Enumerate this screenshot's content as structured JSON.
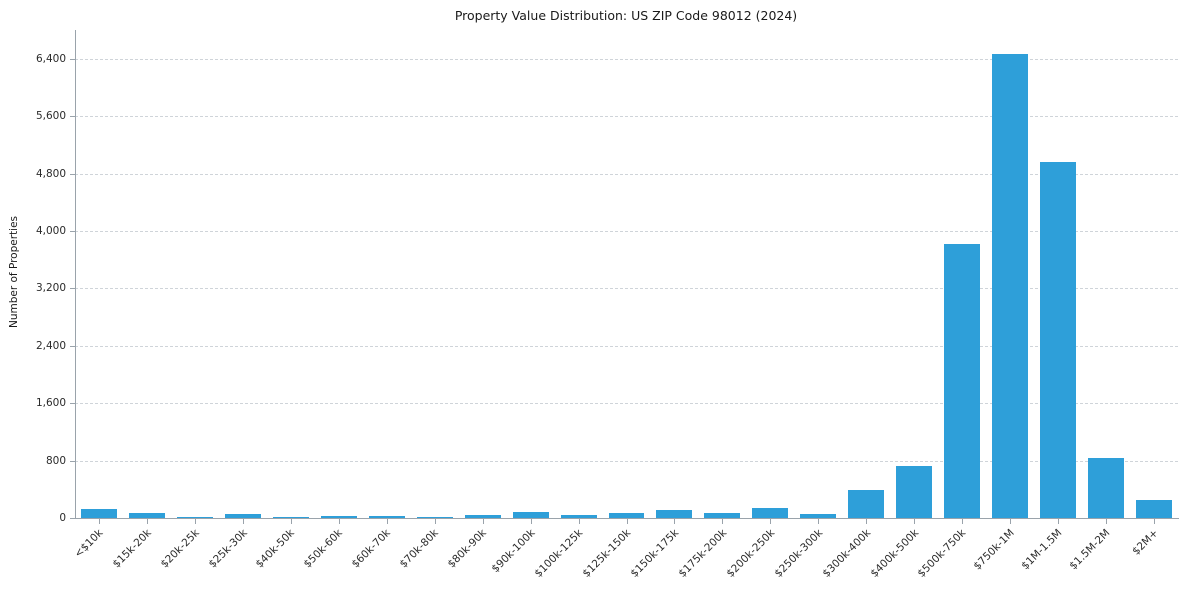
{
  "chart_data": {
    "type": "bar",
    "title": "Property Value Distribution: US ZIP Code 98012 (2024)",
    "ylabel": "Number of Properties",
    "xlabel": "",
    "categories": [
      "<$10k",
      "$15k-20k",
      "$20k-25k",
      "$25k-30k",
      "$40k-50k",
      "$50k-60k",
      "$60k-70k",
      "$70k-80k",
      "$80k-90k",
      "$90k-100k",
      "$100k-125k",
      "$125k-150k",
      "$150k-175k",
      "$175k-200k",
      "$200k-250k",
      "$250k-300k",
      "$300k-400k",
      "$400k-500k",
      "$500k-750k",
      "$750k-1M",
      "$1M-1.5M",
      "$1.5M-2M",
      "$2M+"
    ],
    "values": [
      130,
      70,
      5,
      55,
      12,
      28,
      28,
      12,
      35,
      85,
      45,
      65,
      110,
      65,
      140,
      55,
      390,
      720,
      3820,
      6470,
      4960,
      840,
      250
    ],
    "ylim": [
      0,
      6800
    ],
    "yticks": [
      0,
      800,
      1600,
      2400,
      3200,
      4000,
      4800,
      5600,
      6400
    ],
    "ytick_labels": [
      "0",
      "800",
      "1,600",
      "2,400",
      "3,200",
      "4,000",
      "4,800",
      "5,600",
      "6,400"
    ],
    "bar_color": "#2e9fd9",
    "grid": "horizontal-dashed",
    "legend": "none"
  }
}
